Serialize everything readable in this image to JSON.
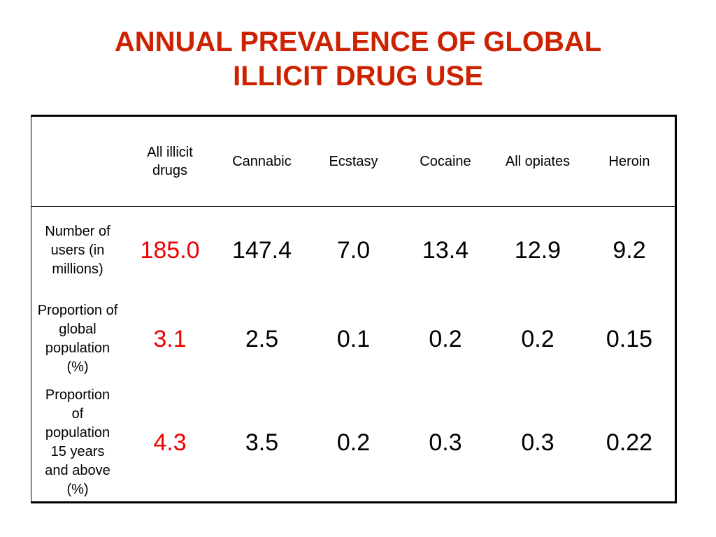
{
  "slide": {
    "title_line1": "ANNUAL PREVALENCE OF GLOBAL",
    "title_line2": "ILLICIT DRUG USE",
    "title_color": "#cc2200",
    "highlight_color": "#ee0000",
    "text_color": "#000000"
  },
  "table": {
    "columns": [
      "",
      "All illicit drugs",
      "Cannabic",
      "Ecstasy",
      "Cocaine",
      "All opiates",
      "Heroin"
    ],
    "rows": [
      {
        "label": "Number of users (in millions)",
        "values": [
          "185.0",
          "147.4",
          "7.0",
          "13.4",
          "12.9",
          "9.2"
        ]
      },
      {
        "label": "Proportion of global population (%)",
        "values": [
          "3.1",
          "2.5",
          "0.1",
          "0.2",
          "0.2",
          "0.15"
        ]
      },
      {
        "label": "Proportion of population 15 years and above (%)",
        "values": [
          "4.3",
          "3.5",
          "0.2",
          "0.3",
          "0.3",
          "0.22"
        ]
      }
    ]
  }
}
